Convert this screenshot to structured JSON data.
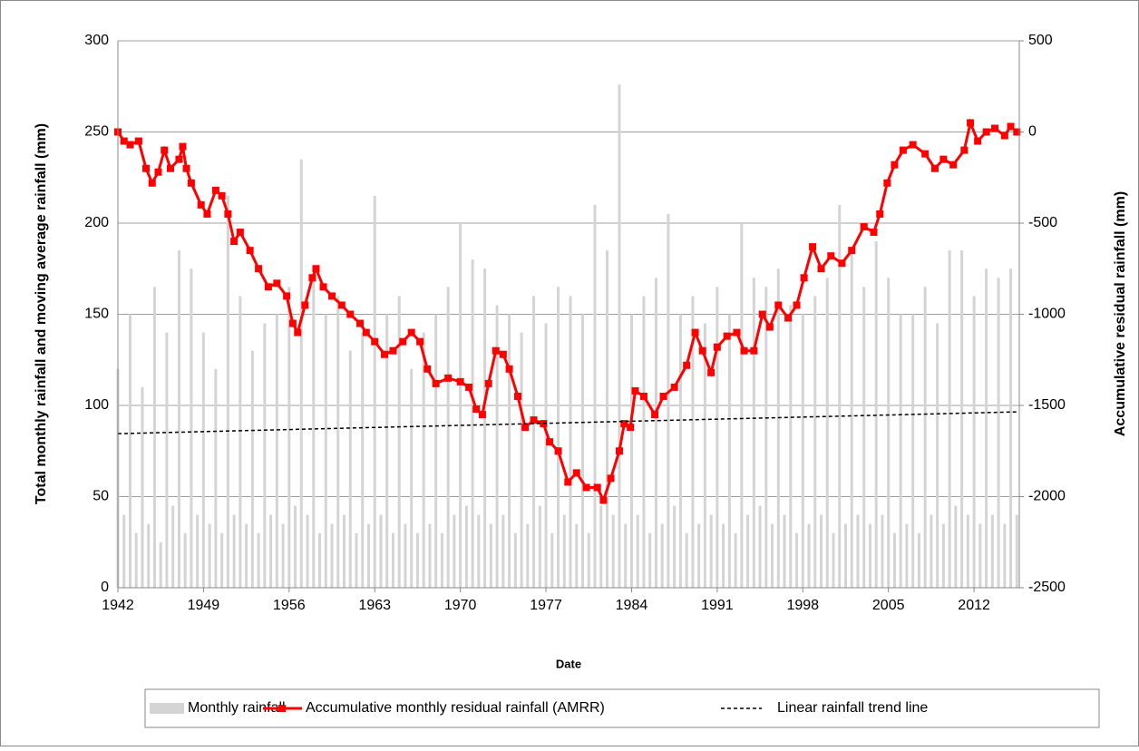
{
  "chart_data": {
    "type": "combo",
    "xlabel": "Date",
    "ylabel": "Total monthly rainfall and moving average rainfall (mm)",
    "y2label": "Accumulative residual rainfall (mm)",
    "xlim": [
      1942,
      2015.7
    ],
    "xticks": [
      1942,
      1949,
      1956,
      1963,
      1970,
      1977,
      1984,
      1991,
      1998,
      2005,
      2012
    ],
    "ylim": [
      0,
      300
    ],
    "yticks": [
      0,
      50,
      100,
      150,
      200,
      250,
      300
    ],
    "y2lim": [
      -2500,
      500
    ],
    "y2ticks": [
      -2500,
      -2000,
      -1500,
      -1000,
      -500,
      0,
      500
    ],
    "grid": true,
    "legend": "bottom",
    "series": [
      {
        "name": "Monthly rainfall",
        "kind": "bar",
        "color": "#d4d4d4",
        "x": [
          1942,
          1942.5,
          1943,
          1943.5,
          1944,
          1944.5,
          1945,
          1945.5,
          1946,
          1946.5,
          1947,
          1947.5,
          1948,
          1948.5,
          1949,
          1949.5,
          1950,
          1950.5,
          1951,
          1951.5,
          1952,
          1952.5,
          1953,
          1953.5,
          1954,
          1954.5,
          1955,
          1955.5,
          1956,
          1956.5,
          1957,
          1957.5,
          1958,
          1958.5,
          1959,
          1959.5,
          1960,
          1960.5,
          1961,
          1961.5,
          1962,
          1962.5,
          1963,
          1963.5,
          1964,
          1964.5,
          1965,
          1965.5,
          1966,
          1966.5,
          1967,
          1967.5,
          1968,
          1968.5,
          1969,
          1969.5,
          1970,
          1970.5,
          1971,
          1971.5,
          1972,
          1972.5,
          1973,
          1973.5,
          1974,
          1974.5,
          1975,
          1975.5,
          1976,
          1976.5,
          1977,
          1977.5,
          1978,
          1978.5,
          1979,
          1979.5,
          1980,
          1980.5,
          1981,
          1981.5,
          1982,
          1982.5,
          1983,
          1983.5,
          1984,
          1984.5,
          1985,
          1985.5,
          1986,
          1986.5,
          1987,
          1987.5,
          1988,
          1988.5,
          1989,
          1989.5,
          1990,
          1990.5,
          1991,
          1991.5,
          1992,
          1992.5,
          1993,
          1993.5,
          1994,
          1994.5,
          1995,
          1995.5,
          1996,
          1996.5,
          1997,
          1997.5,
          1998,
          1998.5,
          1999,
          1999.5,
          2000,
          2000.5,
          2001,
          2001.5,
          2002,
          2002.5,
          2003,
          2003.5,
          2004,
          2004.5,
          2005,
          2005.5,
          2006,
          2006.5,
          2007,
          2007.5,
          2008,
          2008.5,
          2009,
          2009.5,
          2010,
          2010.5,
          2011,
          2011.5,
          2012,
          2012.5,
          2013,
          2013.5,
          2014,
          2014.5,
          2015,
          2015.5
        ],
        "values": [
          120,
          40,
          150,
          30,
          110,
          35,
          165,
          25,
          140,
          45,
          185,
          30,
          175,
          40,
          140,
          35,
          120,
          30,
          215,
          40,
          160,
          35,
          130,
          30,
          145,
          40,
          150,
          35,
          165,
          45,
          235,
          40,
          170,
          30,
          150,
          35,
          160,
          40,
          130,
          30,
          140,
          35,
          215,
          40,
          150,
          30,
          160,
          35,
          120,
          30,
          140,
          35,
          150,
          30,
          165,
          40,
          200,
          45,
          180,
          40,
          175,
          35,
          155,
          40,
          150,
          30,
          140,
          35,
          160,
          45,
          145,
          30,
          165,
          40,
          160,
          35,
          150,
          30,
          210,
          45,
          185,
          40,
          276,
          35,
          150,
          40,
          160,
          30,
          170,
          35,
          205,
          45,
          150,
          30,
          160,
          35,
          145,
          40,
          165,
          35,
          150,
          30,
          200,
          40,
          170,
          45,
          165,
          35,
          175,
          40,
          155,
          30,
          150,
          35,
          160,
          40,
          170,
          30,
          210,
          35,
          185,
          40,
          165,
          35,
          190,
          40,
          170,
          30,
          150,
          35,
          150,
          30,
          165,
          40,
          145,
          35,
          185,
          45,
          185,
          40,
          160,
          35,
          175,
          40,
          170,
          35,
          175,
          40
        ]
      },
      {
        "name": "Accumulative monthly residual rainfall (AMRR)",
        "kind": "line",
        "axis": "y2",
        "color": "#ff0000",
        "x": [
          1942,
          1942.5,
          1943,
          1943.7,
          1944.3,
          1944.8,
          1945.3,
          1945.8,
          1946.3,
          1947,
          1947.3,
          1947.6,
          1948,
          1948.8,
          1949.3,
          1950,
          1950.5,
          1951,
          1951.5,
          1952,
          1952.8,
          1953.5,
          1954.3,
          1955,
          1955.8,
          1956.3,
          1956.7,
          1957.3,
          1957.9,
          1958.2,
          1958.8,
          1959.5,
          1960.3,
          1961,
          1961.8,
          1962.3,
          1963,
          1963.8,
          1964.5,
          1965.3,
          1966,
          1966.7,
          1967.3,
          1968,
          1969,
          1970,
          1970.7,
          1971.3,
          1971.8,
          1972.3,
          1972.9,
          1973.5,
          1974,
          1974.7,
          1975.3,
          1976,
          1976.8,
          1977.3,
          1978,
          1978.8,
          1979.5,
          1980.3,
          1981.2,
          1981.7,
          1982.3,
          1983,
          1983.4,
          1983.9,
          1984.3,
          1985,
          1985.9,
          1986.6,
          1987.5,
          1988.5,
          1989.2,
          1989.8,
          1990.5,
          1991,
          1991.8,
          1992.6,
          1993.2,
          1994,
          1994.7,
          1995.3,
          1996,
          1996.8,
          1997.5,
          1998.1,
          1998.8,
          1999.5,
          2000.3,
          2001.2,
          2002,
          2003,
          2003.8,
          2004.3,
          2004.9,
          2005.5,
          2006.2,
          2007,
          2008,
          2008.8,
          2009.5,
          2010.3,
          2011.2,
          2011.7,
          2012.3,
          2013,
          2013.7,
          2014.5,
          2015,
          2015.5
        ],
        "values": [
          0,
          -50,
          -70,
          -50,
          -200,
          -280,
          -220,
          -100,
          -200,
          -150,
          -80,
          -200,
          -280,
          -400,
          -450,
          -320,
          -350,
          -450,
          -600,
          -550,
          -650,
          -750,
          -850,
          -830,
          -900,
          -1050,
          -1100,
          -950,
          -800,
          -750,
          -850,
          -900,
          -950,
          -1000,
          -1050,
          -1100,
          -1150,
          -1220,
          -1200,
          -1150,
          -1100,
          -1150,
          -1300,
          -1380,
          -1350,
          -1370,
          -1400,
          -1520,
          -1550,
          -1380,
          -1200,
          -1220,
          -1300,
          -1450,
          -1620,
          -1580,
          -1600,
          -1700,
          -1750,
          -1920,
          -1870,
          -1950,
          -1950,
          -2020,
          -1900,
          -1750,
          -1600,
          -1620,
          -1420,
          -1450,
          -1550,
          -1450,
          -1400,
          -1280,
          -1100,
          -1200,
          -1320,
          -1180,
          -1120,
          -1100,
          -1200,
          -1200,
          -1000,
          -1070,
          -950,
          -1020,
          -950,
          -800,
          -630,
          -750,
          -680,
          -720,
          -650,
          -520,
          -550,
          -450,
          -280,
          -180,
          -100,
          -70,
          -120,
          -200,
          -150,
          -180,
          -100,
          50,
          -50,
          0,
          20,
          -20,
          30,
          0
        ]
      },
      {
        "name": "Linear rainfall trend line",
        "kind": "dashed",
        "color": "#000000",
        "x": [
          1942,
          2015.7
        ],
        "values": [
          84.5,
          96.5
        ]
      }
    ]
  }
}
